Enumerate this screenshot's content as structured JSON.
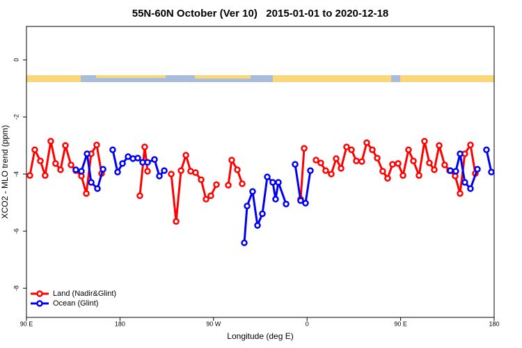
{
  "chart_data": {
    "type": "line",
    "title": "55N-60N October (Ver 10)   2015-01-01 to 2020-12-18",
    "x_label": "Longitude (deg E)",
    "y_label": "XCO2 - MLO trend (ppm)",
    "xlim": [
      90,
      540
    ],
    "xticks": [
      {
        "value": 90,
        "label": "90 E"
      },
      180,
      {
        "value": 270,
        "label": "90 W"
      },
      {
        "value": 360,
        "label": "0"
      },
      {
        "value": 450,
        "label": "90 E"
      },
      {
        "value": 540,
        "label": "180"
      }
    ],
    "ylim": [
      -9.02,
      1.17
    ],
    "yticks": [
      0,
      -2,
      -4,
      -6,
      -8
    ],
    "legend": "bottomleft",
    "series": [
      {
        "name": "Land (Nadir&Glint)",
        "color": "#ff0000",
        "x": [
          93.3,
          98,
          103.4,
          108,
          113.4,
          118,
          122.8,
          127.5,
          132.9,
          137.5,
          142.9,
          147.6,
          152.3,
          157.6,
          162.3,
          null,
          199.1,
          203.8,
          206.5,
          null,
          229.3,
          234,
          238.7,
          243.4,
          248,
          252.7,
          258.1,
          262.8,
          267.4,
          272.8,
          null,
          284.2,
          287.5,
          292.9,
          297.6,
          null,
          353.8,
          357.2,
          null,
          368.6,
          373.2,
          377.9,
          383.3,
          388,
          392.7,
          398,
          402.7,
          407.4,
          412.7,
          417.4,
          422.8,
          427.5,
          432.8,
          437.5,
          442.2,
          447.6,
          452.3,
          457.6,
          462.3,
          467.7,
          473,
          477.7,
          482.4,
          487.1,
          492.4,
          497.1,
          502.5,
          507.2,
          511.8,
          517.2,
          521.9
        ],
        "values": [
          -4.05,
          -3.15,
          -3.54,
          -4.05,
          -2.85,
          -3.63,
          -3.85,
          -3.0,
          -3.68,
          -3.88,
          -4.07,
          -4.68,
          -3.29,
          -2.98,
          -3.98,
          null,
          -4.76,
          -3.05,
          -3.9,
          null,
          -4.0,
          -5.66,
          -3.88,
          -3.34,
          -3.9,
          -3.95,
          -4.2,
          -4.88,
          -4.76,
          -4.37,
          null,
          -4.39,
          -3.51,
          -3.85,
          -4.34,
          null,
          -4.88,
          -3.1,
          null,
          -3.51,
          -3.61,
          -3.88,
          -4.0,
          -3.46,
          -3.8,
          -3.05,
          -3.15,
          -3.54,
          -3.56,
          -2.9,
          -3.15,
          -3.44,
          -3.9,
          -4.15,
          -3.66,
          -3.63,
          -4.05,
          -3.15,
          -3.54,
          -4.05,
          -2.85,
          -3.61,
          -3.85,
          -3.0,
          -3.68,
          -3.88,
          -4.07,
          -4.68,
          -3.29,
          -2.98,
          -3.98
        ]
      },
      {
        "name": "Ocean (Glint)",
        "color": "#0000ee",
        "x": [
          137.5,
          142.9,
          148.3,
          152.3,
          158.3,
          163.7,
          null,
          173,
          177.7,
          182.4,
          187.8,
          192.5,
          197.1,
          201.8,
          206.5,
          213.2,
          217.9,
          222.6,
          null,
          299.6,
          302.3,
          307.6,
          312.3,
          317,
          321.7,
          327,
          329.7,
          332.4,
          339.8,
          null,
          348.5,
          353.8,
          358.5,
          363.2,
          null,
          497.8,
          503.1,
          507.2,
          511.8,
          517.2,
          523.9,
          null,
          532.6,
          537.3
        ],
        "values": [
          -3.85,
          -3.9,
          -3.29,
          -4.29,
          -4.51,
          -3.83,
          null,
          -3.15,
          -3.93,
          -3.63,
          -3.39,
          -3.46,
          -3.44,
          -3.59,
          -3.59,
          -3.49,
          -4.07,
          -3.88,
          null,
          -6.41,
          -5.12,
          -4.61,
          -5.8,
          -5.39,
          -4.1,
          -4.29,
          -4.88,
          -4.29,
          -5.05,
          null,
          -3.66,
          -4.93,
          -5.02,
          -3.88,
          null,
          -3.88,
          -3.9,
          -3.29,
          -4.29,
          -4.51,
          -3.83,
          null,
          -3.15,
          -3.93
        ]
      }
    ]
  }
}
